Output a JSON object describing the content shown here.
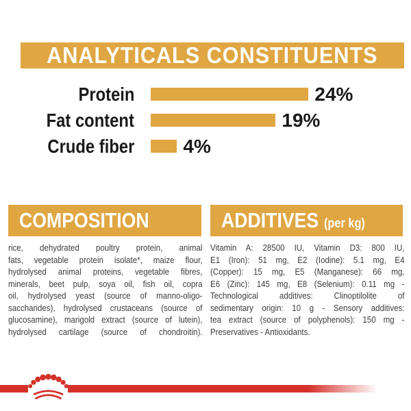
{
  "colors": {
    "gold": "#DFA642",
    "red": "#D5312A",
    "heading_text": "#FFFFFF",
    "label_text": "#1A1A1A",
    "body_text": "#3C3C3C"
  },
  "analytical": {
    "header": "ANALYTICALS CONSTITUENTS"
  },
  "chart_data": {
    "type": "bar",
    "orientation": "horizontal",
    "title": "ANALYTICALS CONSTITUENTS",
    "categories": [
      "Protein",
      "Fat content",
      "Crude fiber"
    ],
    "values": [
      24,
      19,
      4
    ],
    "value_labels": [
      "24%",
      "19%",
      "4%"
    ],
    "unit": "%",
    "xlim": [
      0,
      25
    ],
    "grid": false,
    "legend": false,
    "bar_color": "#DFA642"
  },
  "composition": {
    "title": "COMPOSITION",
    "justify_last_line": true,
    "lines": [
      "rice, dehydrated poultry protein, animal",
      "fats, vegetable protein isolate*, maize flour,",
      "hydrolysed animal proteins, vegetable fibres,",
      "minerals, beet pulp, soya oil, fish oil, copra",
      "oil, hydrolysed yeast (source of manno-oligo-",
      "saccharides), hydrolysed crustaceans (source of",
      "glucosamine), marigold extract (source of lutein),",
      "hydrolysed cartilage (source of chondroitin)."
    ]
  },
  "additives": {
    "title": "ADDITIVES",
    "unit_note": "(per kg)",
    "justify_last_line": false,
    "lines": [
      "Vitamin A: 28500 IU, Vitamin D3: 800 IU,",
      "E1 (Iron): 51 mg, E2 (Iodine): 5.1 mg, E4",
      "(Copper): 15 mg, E5 (Manganese): 66 mg,",
      "E6 (Zinc): 145 mg, E8 (Selenium): 0.11 mg -",
      "Technological additives: Clinoptilolite of",
      "sedimentary origin: 10 g - Sensory additives:",
      "tea extract (source of polyphenols): 150 mg -",
      "Preservatives - Antioxidants."
    ]
  },
  "icons": {
    "crown": "royal-canin-crown-icon"
  }
}
